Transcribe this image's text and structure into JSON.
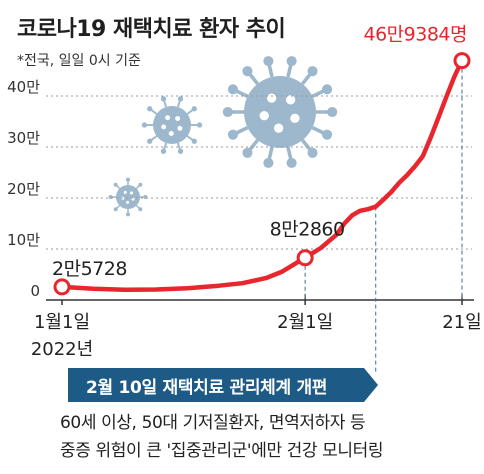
{
  "header": {
    "title": "코로나19 재택치료 환자 추이",
    "subtitle": "*전국, 일일 0시 기준"
  },
  "chart_data": {
    "type": "line",
    "unit_note": "만",
    "y_ticks": [
      {
        "value": 0,
        "label": "0"
      },
      {
        "value": 100000,
        "label": "10만"
      },
      {
        "value": 200000,
        "label": "20만"
      },
      {
        "value": 300000,
        "label": "30만"
      },
      {
        "value": 400000,
        "label": "40만"
      }
    ],
    "ylim": [
      0,
      470000
    ],
    "x_ticks": [
      {
        "day": 0,
        "label": "1월1일",
        "sublabel": "2022년"
      },
      {
        "day": 31,
        "label": "2월1일"
      },
      {
        "day": 51,
        "label": "21일"
      }
    ],
    "xlim": [
      0,
      51
    ],
    "series": [
      {
        "color": "#e8262d",
        "points": [
          [
            0,
            25728
          ],
          [
            4,
            22000
          ],
          [
            8,
            20000
          ],
          [
            12,
            20500
          ],
          [
            16,
            23000
          ],
          [
            20,
            28000
          ],
          [
            23,
            33000
          ],
          [
            26,
            43000
          ],
          [
            28,
            55000
          ],
          [
            31,
            82860
          ],
          [
            33,
            102000
          ],
          [
            35,
            128000
          ],
          [
            36,
            150000
          ],
          [
            37,
            166000
          ],
          [
            38,
            175000
          ],
          [
            39,
            178000
          ],
          [
            40,
            183000
          ],
          [
            41,
            197000
          ],
          [
            42,
            212000
          ],
          [
            43,
            230000
          ],
          [
            44,
            245000
          ],
          [
            45,
            262000
          ],
          [
            46,
            282000
          ],
          [
            47,
            318000
          ],
          [
            48,
            358000
          ],
          [
            49,
            398000
          ],
          [
            50,
            437000
          ],
          [
            51,
            469384
          ]
        ]
      }
    ],
    "markers": [
      {
        "day": 0,
        "value": 25728,
        "label": "2만5728",
        "color": "#222222"
      },
      {
        "day": 31,
        "value": 82860,
        "label": "8만2860",
        "color": "#222222"
      },
      {
        "day": 51,
        "value": 469384,
        "label": "46만9384명",
        "color": "#e8262d"
      }
    ],
    "event_day": 40
  },
  "banner": {
    "text": "2월 10일 재택치료 관리체계 개편",
    "color": "#1d5a85"
  },
  "notes": [
    "60세 이상, 50대 기저질환자, 면역저하자 등",
    "중증 위험이 큰 '집중관리군'에만 건강 모니터링"
  ]
}
